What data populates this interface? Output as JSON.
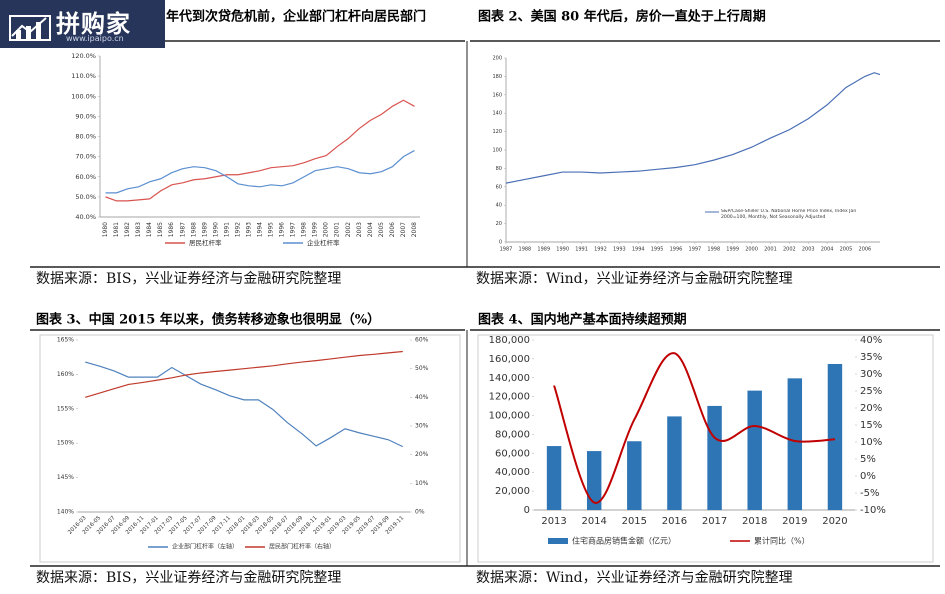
{
  "watermark": {
    "brand": "拼购家",
    "url": "www.ipaipo.cn"
  },
  "chart_data": [
    {
      "type": "line",
      "title": "年代到次贷危机前，企业部门杠杆向居民部门",
      "source": "数据来源：BIS，兴业证券经济与金融研究院整理",
      "categories": [
        "1980",
        "1981",
        "1982",
        "1983",
        "1984",
        "1985",
        "1986",
        "1987",
        "1988",
        "1989",
        "1990",
        "1991",
        "1992",
        "1993",
        "1994",
        "1995",
        "1996",
        "1997",
        "1998",
        "1999",
        "2000",
        "2001",
        "2002",
        "2003",
        "2004",
        "2005",
        "2006",
        "2007",
        "2008"
      ],
      "series": [
        {
          "name": "居民杠杆率",
          "color": "#d9534f",
          "values": [
            50,
            48,
            48,
            48.5,
            49,
            53,
            56,
            57,
            58.5,
            59,
            60,
            61,
            61,
            62,
            63,
            64.5,
            65,
            65.5,
            67,
            69,
            70.5,
            75,
            79,
            84,
            88,
            91,
            95,
            98,
            95
          ]
        },
        {
          "name": "企业杠杆率",
          "color": "#5b8fd0",
          "values": [
            52,
            52,
            54,
            55,
            57.5,
            59,
            62,
            64,
            65,
            64.5,
            63,
            60,
            56.5,
            55.5,
            55,
            56,
            55.5,
            57,
            60,
            63,
            64,
            65,
            64,
            62,
            61.5,
            62.5,
            65,
            70,
            73
          ]
        }
      ],
      "ylim": [
        40,
        120
      ],
      "yticks": [
        {
          "value": 40,
          "label": "40.0%"
        },
        {
          "value": 50,
          "label": "50.0%"
        },
        {
          "value": 60,
          "label": "60.0%"
        },
        {
          "value": 70,
          "label": "70.0%"
        },
        {
          "value": 80,
          "label": "80.0%"
        },
        {
          "value": 90,
          "label": "90.0%"
        },
        {
          "value": 100,
          "label": "100.0%"
        },
        {
          "value": 110,
          "label": "110.0%"
        },
        {
          "value": 120,
          "label": "120.0%"
        }
      ],
      "grid": false
    },
    {
      "type": "line",
      "title": "图表 2、美国 80 年代后，房价一直处于上行周期",
      "source": "数据来源：Wind，兴业证券经济与金融研究院整理",
      "x": [
        1987,
        1988,
        1989,
        1990,
        1991,
        1992,
        1993,
        1994,
        1995,
        1996,
        1997,
        1998,
        1999,
        2000,
        2001,
        2002,
        2003,
        2004,
        2005,
        2006,
        2006.5,
        2006.8
      ],
      "series": [
        {
          "name": "S&P/Case-Shiller U.S. National Home Price Index, Index Jan 2000=100, Monthly, Not Seasonally Adjusted",
          "color": "#4a6fb5",
          "values": [
            64,
            68,
            72,
            76,
            76,
            75,
            76,
            77,
            79,
            81,
            84,
            89,
            95,
            103,
            113,
            122,
            134,
            149,
            168,
            180,
            184,
            182
          ]
        }
      ],
      "xlim": [
        1987,
        2006.8
      ],
      "xticks": [
        1987,
        1988,
        1989,
        1990,
        1991,
        1992,
        1993,
        1994,
        1995,
        1996,
        1997,
        1998,
        1999,
        2000,
        2001,
        2002,
        2003,
        2004,
        2005,
        2006
      ],
      "ylim": [
        0,
        200
      ],
      "yticks": [
        0,
        20,
        40,
        60,
        80,
        100,
        120,
        140,
        160,
        180,
        200
      ],
      "grid": false
    },
    {
      "type": "line",
      "title": "图表 3、中国 2015 年以来，债务转移迹象也很明显（%）",
      "source": "数据来源：BIS，兴业证券经济与金融研究院整理",
      "categories": [
        "2016-03",
        "2016-05",
        "2016-07",
        "2016-09",
        "2016-11",
        "2017-01",
        "2017-03",
        "2017-05",
        "2017-07",
        "2017-09",
        "2017-11",
        "2018-01",
        "2018-03",
        "2018-05",
        "2018-07",
        "2018-09",
        "2018-11",
        "2019-01",
        "2019-03",
        "2019-05",
        "2019-07",
        "2019-09",
        "2019-11"
      ],
      "series": [
        {
          "name": "企业部门杠杆率（左轴）",
          "color": "#4f81bd",
          "values": [
            161.8,
            161.2,
            160.5,
            159.6,
            159.6,
            159.6,
            161.0,
            159.8,
            158.6,
            157.8,
            156.9,
            156.3,
            156.3,
            154.9,
            153.0,
            151.4,
            149.6,
            150.8,
            152.1,
            151.5,
            151.0,
            150.5,
            149.5
          ]
        },
        {
          "name": "居民部门杠杆率（右轴）",
          "color": "#c0392b",
          "axis": "y2",
          "values": [
            40,
            41.5,
            43,
            44.5,
            45.2,
            46,
            46.8,
            47.8,
            48.5,
            49,
            49.5,
            50,
            50.5,
            51,
            51.7,
            52.3,
            52.8,
            53.4,
            54,
            54.6,
            55,
            55.5,
            56
          ]
        }
      ],
      "ylim": [
        140,
        165
      ],
      "yticks": [
        {
          "value": 140,
          "label": "140%"
        },
        {
          "value": 145,
          "label": "145%"
        },
        {
          "value": 150,
          "label": "150%"
        },
        {
          "value": 155,
          "label": "155%"
        },
        {
          "value": 160,
          "label": "160%"
        },
        {
          "value": 165,
          "label": "165%"
        }
      ],
      "y2lim": [
        0,
        60
      ],
      "y2ticks": [
        {
          "value": 0,
          "label": "0%"
        },
        {
          "value": 10,
          "label": "10%"
        },
        {
          "value": 20,
          "label": "20%"
        },
        {
          "value": 30,
          "label": "30%"
        },
        {
          "value": 40,
          "label": "40%"
        },
        {
          "value": 50,
          "label": "50%"
        },
        {
          "value": 60,
          "label": "60%"
        }
      ],
      "grid": false
    },
    {
      "type": "bar",
      "title": "图表 4、国内地产基本面持续超预期",
      "source": "数据来源：Wind，兴业证券经济与金融研究院整理",
      "categories": [
        "2013",
        "2014",
        "2015",
        "2016",
        "2017",
        "2018",
        "2019",
        "2020"
      ],
      "series": [
        {
          "name": "住宅商品房销售金额（亿元）",
          "color": "#2e75b6",
          "type": "bar",
          "values": [
            67700,
            62400,
            72800,
            99100,
            110200,
            126400,
            139400,
            154600
          ]
        },
        {
          "name": "累计同比（%）",
          "color": "#c00000",
          "type": "line",
          "smooth": true,
          "axis": "y2",
          "values": [
            26.6,
            -7.8,
            16.6,
            36.1,
            11.3,
            14.7,
            10.3,
            10.8
          ]
        }
      ],
      "ylim": [
        0,
        180000
      ],
      "yticks": [
        0,
        {
          "value": 20000,
          "label": "20,000"
        },
        {
          "value": 40000,
          "label": "40,000"
        },
        {
          "value": 60000,
          "label": "60,000"
        },
        {
          "value": 80000,
          "label": "80,000"
        },
        {
          "value": 100000,
          "label": "100,000"
        },
        {
          "value": 120000,
          "label": "120,000"
        },
        {
          "value": 140000,
          "label": "140,000"
        },
        {
          "value": 160000,
          "label": "160,000"
        },
        {
          "value": 180000,
          "label": "180,000"
        }
      ],
      "y2lim": [
        -10,
        40
      ],
      "y2ticks": [
        {
          "value": -10,
          "label": "-10%"
        },
        {
          "value": -5,
          "label": "-5%"
        },
        {
          "value": 0,
          "label": "0%"
        },
        {
          "value": 5,
          "label": "5%"
        },
        {
          "value": 10,
          "label": "10%"
        },
        {
          "value": 15,
          "label": "15%"
        },
        {
          "value": 20,
          "label": "20%"
        },
        {
          "value": 25,
          "label": "25%"
        },
        {
          "value": 30,
          "label": "30%"
        },
        {
          "value": 35,
          "label": "35%"
        },
        {
          "value": 40,
          "label": "40%"
        }
      ],
      "grid": false
    }
  ]
}
